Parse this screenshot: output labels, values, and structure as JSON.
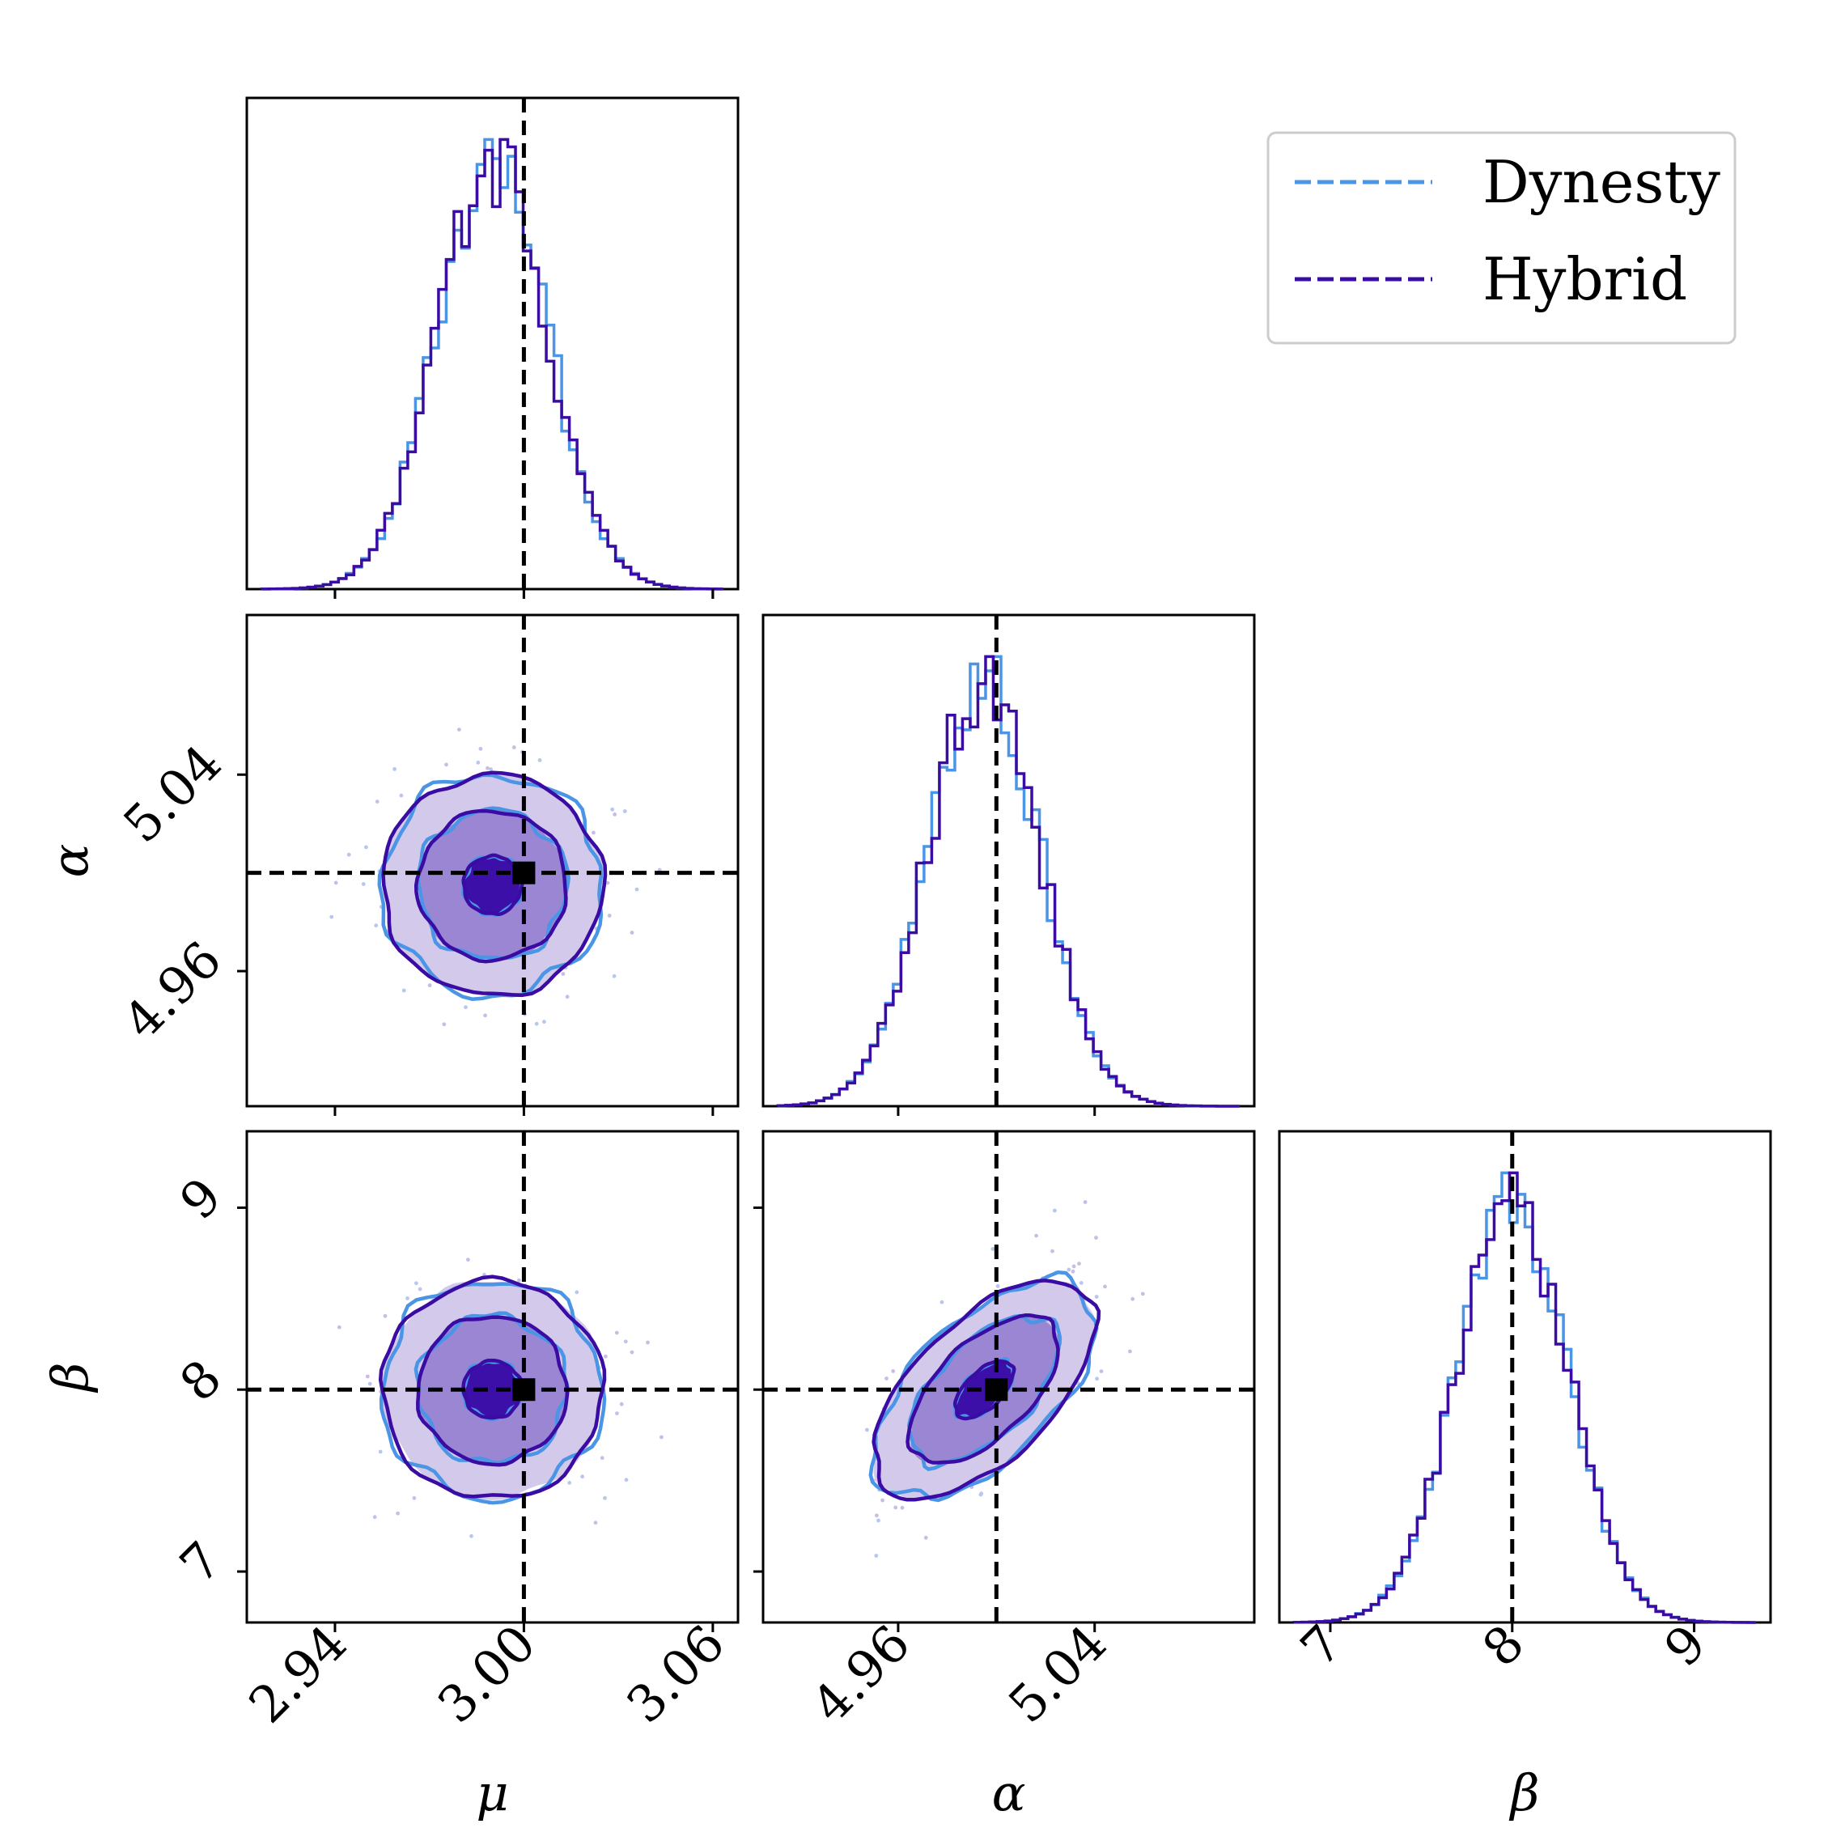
{
  "colors": {
    "dynesty": "#4a95e6",
    "hybrid": "#3a0ca3",
    "truth": "#000000",
    "fill_levels": [
      "#d3c9ea",
      "#9b86d3",
      "#3c0fa8"
    ]
  },
  "legend": {
    "placement": "top-right",
    "entries": [
      {
        "label": "Dynesty",
        "color": "#4a95e6",
        "style": "dashed"
      },
      {
        "label": "Hybrid",
        "color": "#3a0ca3",
        "style": "dashed"
      }
    ]
  },
  "chart_data": {
    "type": "corner",
    "parameters": [
      {
        "symbol": "μ",
        "truth": 3.0,
        "range": [
          2.912,
          3.068
        ],
        "ticks": [
          2.94,
          3.0,
          3.06
        ],
        "tick_labels": [
          "2.94",
          "3.00",
          "3.06"
        ]
      },
      {
        "symbol": "α",
        "truth": 5.0,
        "range": [
          4.905,
          5.105
        ],
        "ticks": [
          4.96,
          5.04
        ],
        "tick_labels": [
          "4.96",
          "5.04"
        ]
      },
      {
        "symbol": "β",
        "truth": 8.0,
        "range": [
          6.72,
          9.42
        ],
        "ticks": [
          7,
          8,
          9
        ],
        "tick_labels": [
          "7",
          "8",
          "9"
        ]
      }
    ],
    "series": [
      {
        "name": "Dynesty",
        "color": "#4a95e6"
      },
      {
        "name": "Hybrid",
        "color": "#3a0ca3"
      }
    ],
    "posteriors": {
      "mean": [
        2.99,
        4.995,
        8.0
      ],
      "sigma": [
        0.0175,
        0.0225,
        0.3
      ],
      "correlation_alpha_beta": 0.6,
      "contour_levels_sigma": [
        0.5,
        1.0,
        1.5,
        2.0
      ]
    },
    "grid": false
  }
}
